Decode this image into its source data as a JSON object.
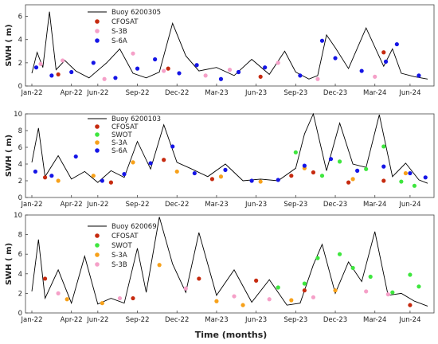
{
  "colors": {
    "buoy": "#000000",
    "CFOSAT": "#c62a0f",
    "S-3B": "#f5a0c8",
    "S-6A": "#1515e6",
    "SWOT": "#3ee63e",
    "S-3A": "#f7a11a"
  },
  "xlabel": "Time (months)",
  "chart_data": [
    {
      "type": "line",
      "ylabel": "SWH ( m)",
      "ylim": [
        0,
        7
      ],
      "yticks": [
        0,
        2,
        4,
        6
      ],
      "x_ticks": [
        "Jan-22",
        "Apr-22",
        "Jun-22",
        "Sep-22",
        "Dec-22",
        "Mar-23",
        "Jun-23",
        "Sep-23",
        "Dec-23",
        "Mar-24",
        "Jun-24"
      ],
      "legend_position": "top-left",
      "series": [
        {
          "name": "Buoy 6200305",
          "kind": "line",
          "color": "#000000",
          "x": [
            0,
            12,
            25,
            40,
            55,
            75,
            100,
            130,
            170,
            200,
            230,
            260,
            290,
            320,
            350,
            380,
            420,
            460,
            500,
            540,
            575,
            600,
            630,
            650,
            670,
            690,
            720,
            760,
            800,
            820,
            840,
            870,
            900
          ],
          "y": [
            1.1,
            2.9,
            1.6,
            6.4,
            1.4,
            2.2,
            1.3,
            0.7,
            2.0,
            3.2,
            1.1,
            0.7,
            1.2,
            5.4,
            2.6,
            1.3,
            1.6,
            0.9,
            2.3,
            1.0,
            3.0,
            1.2,
            0.6,
            0.9,
            4.4,
            3.3,
            1.5,
            5.0,
            1.7,
            3.2,
            1.1,
            0.8,
            0.6
          ]
        },
        {
          "name": "CFOSAT",
          "kind": "points",
          "color": "#c62a0f",
          "x": [
            60,
            310,
            520,
            800
          ],
          "y": [
            1.0,
            1.5,
            0.8,
            2.9
          ]
        },
        {
          "name": "S-3B",
          "kind": "points",
          "color": "#f5a0c8",
          "x": [
            20,
            70,
            165,
            230,
            300,
            395,
            450,
            560,
            650,
            780
          ],
          "y": [
            1.9,
            2.2,
            0.6,
            2.8,
            1.3,
            0.9,
            1.4,
            2.0,
            0.6,
            0.8
          ]
        },
        {
          "name": "S-6A",
          "kind": "points",
          "color": "#1515e6",
          "x": [
            10,
            45,
            90,
            140,
            190,
            240,
            280,
            335,
            375,
            430,
            470,
            530,
            610,
            660,
            690,
            750,
            805,
            830,
            880
          ],
          "y": [
            1.6,
            0.9,
            1.2,
            2.0,
            0.7,
            1.5,
            2.3,
            1.1,
            1.8,
            0.6,
            1.2,
            1.6,
            0.9,
            3.9,
            2.4,
            1.3,
            2.1,
            3.6,
            0.9
          ]
        }
      ]
    },
    {
      "type": "line",
      "ylabel": "SWH ( m)",
      "ylim": [
        0,
        10
      ],
      "yticks": [
        0,
        2,
        4,
        6,
        8,
        10
      ],
      "x_ticks": [
        "Jan-22",
        "Apr-22",
        "Jun-22",
        "Sep-22",
        "Dec-22",
        "Mar-23",
        "Jun-23",
        "Sep-23",
        "Dec-23",
        "Mar-24",
        "Jun-24"
      ],
      "legend_position": "top-center",
      "series": [
        {
          "name": "Buoy 6200103",
          "kind": "line",
          "color": "#000000",
          "x": [
            0,
            15,
            30,
            60,
            90,
            120,
            150,
            180,
            210,
            240,
            270,
            300,
            330,
            360,
            400,
            440,
            480,
            520,
            560,
            600,
            620,
            640,
            670,
            700,
            730,
            760,
            790,
            820,
            850,
            880,
            900
          ],
          "y": [
            4.2,
            8.3,
            2.5,
            5.0,
            2.2,
            3.1,
            1.8,
            3.2,
            2.4,
            6.7,
            3.4,
            8.7,
            4.2,
            3.5,
            2.5,
            4.0,
            2.0,
            2.2,
            2.0,
            3.5,
            7.6,
            10.0,
            3.2,
            8.9,
            4.0,
            3.6,
            9.9,
            2.5,
            4.1,
            2.1,
            1.7
          ]
        },
        {
          "name": "CFOSAT",
          "kind": "points",
          "color": "#c62a0f",
          "x": [
            30,
            180,
            300,
            410,
            590,
            640,
            720,
            800
          ],
          "y": [
            2.4,
            1.8,
            4.5,
            2.2,
            2.6,
            3.0,
            1.8,
            2.0
          ]
        },
        {
          "name": "SWOT",
          "kind": "points",
          "color": "#3ee63e",
          "x": [
            600,
            660,
            700,
            760,
            800,
            840,
            870
          ],
          "y": [
            5.4,
            2.6,
            4.3,
            3.4,
            6.1,
            1.9,
            1.4
          ]
        },
        {
          "name": "S-3A",
          "kind": "points",
          "color": "#f7a11a",
          "x": [
            60,
            140,
            230,
            330,
            430,
            520,
            620,
            730,
            850
          ],
          "y": [
            2.0,
            2.6,
            4.2,
            3.1,
            2.5,
            1.9,
            3.5,
            2.2,
            2.9
          ]
        },
        {
          "name": "S-6A",
          "kind": "points",
          "color": "#1515e6",
          "x": [
            8,
            45,
            100,
            160,
            210,
            270,
            320,
            370,
            440,
            500,
            560,
            620,
            680,
            740,
            800,
            860,
            895
          ],
          "y": [
            3.1,
            2.6,
            4.9,
            2.0,
            2.8,
            4.1,
            6.1,
            2.9,
            3.3,
            2.0,
            2.1,
            3.8,
            4.6,
            3.2,
            3.7,
            2.9,
            2.4
          ]
        }
      ]
    },
    {
      "type": "line",
      "ylabel": "SWH ( m)",
      "ylim": [
        0,
        10
      ],
      "yticks": [
        0,
        2,
        4,
        6,
        8,
        10
      ],
      "x_ticks": [
        "Jan-22",
        "Apr-22",
        "Jun-22",
        "Sep-22",
        "Dec-22",
        "Mar-23",
        "Jun-23",
        "Sep-23",
        "Dec-23",
        "Mar-24",
        "Jun-24"
      ],
      "legend_position": "top-center",
      "series": [
        {
          "name": "Buoy 620069",
          "kind": "line",
          "color": "#000000",
          "x": [
            0,
            15,
            30,
            60,
            90,
            120,
            150,
            180,
            210,
            240,
            260,
            290,
            320,
            350,
            380,
            420,
            460,
            500,
            540,
            580,
            610,
            640,
            660,
            690,
            720,
            750,
            780,
            810,
            840,
            870,
            900
          ],
          "y": [
            2.2,
            7.5,
            1.5,
            4.4,
            1.0,
            5.8,
            0.9,
            1.5,
            1.0,
            6.6,
            2.1,
            9.8,
            5.0,
            2.1,
            8.2,
            1.8,
            4.4,
            1.1,
            3.4,
            0.8,
            1.0,
            4.9,
            7.0,
            2.0,
            5.2,
            3.2,
            8.3,
            1.8,
            2.0,
            1.2,
            0.7
          ]
        },
        {
          "name": "CFOSAT",
          "kind": "points",
          "color": "#c62a0f",
          "x": [
            30,
            230,
            380,
            510,
            620,
            860
          ],
          "y": [
            3.5,
            1.5,
            3.5,
            3.3,
            2.3,
            0.8
          ]
        },
        {
          "name": "SWOT",
          "kind": "points",
          "color": "#3ee63e",
          "x": [
            560,
            620,
            650,
            700,
            730,
            770,
            820,
            860,
            880
          ],
          "y": [
            2.6,
            3.0,
            5.6,
            6.0,
            4.6,
            3.7,
            2.1,
            3.9,
            2.7
          ]
        },
        {
          "name": "S-3A",
          "kind": "points",
          "color": "#f7a11a",
          "x": [
            80,
            160,
            290,
            420,
            480,
            590,
            690
          ],
          "y": [
            1.4,
            1.0,
            4.9,
            1.2,
            0.8,
            1.3,
            2.3
          ]
        },
        {
          "name": "S-3B",
          "kind": "points",
          "color": "#f5a0c8",
          "x": [
            60,
            200,
            350,
            460,
            540,
            640,
            760,
            810
          ],
          "y": [
            2.0,
            1.5,
            2.5,
            1.7,
            1.4,
            1.6,
            2.2,
            1.9
          ]
        }
      ]
    }
  ]
}
